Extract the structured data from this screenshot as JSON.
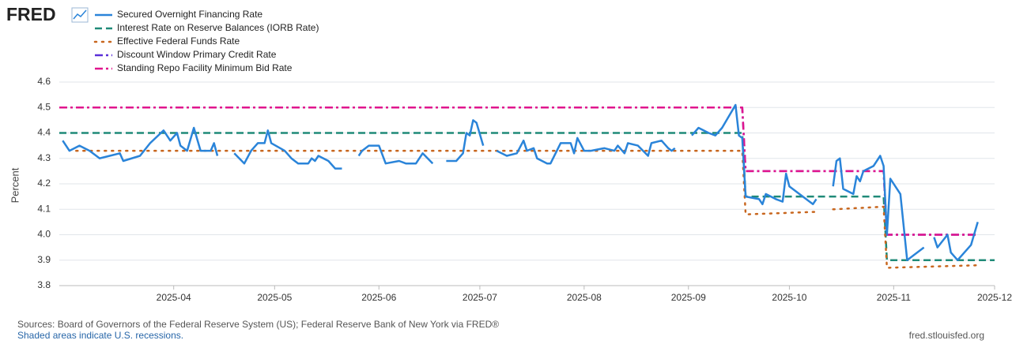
{
  "brand": "FRED",
  "footer": {
    "sources": "Sources: Board of Governors of the Federal Reserve System (US); Federal Reserve Bank of New York via FRED®",
    "note": "Shaded areas indicate U.S. recessions.",
    "site": "fred.stlouisfed.org"
  },
  "chart_data": {
    "type": "line",
    "y_label": "Percent",
    "xlim": [
      "2025-02-26",
      "2025-12-01"
    ],
    "xticks": [
      {
        "value": "2025-04-01",
        "label": "2025-04"
      },
      {
        "value": "2025-05-01",
        "label": "2025-05"
      },
      {
        "value": "2025-06-01",
        "label": "2025-06"
      },
      {
        "value": "2025-07-01",
        "label": "2025-07"
      },
      {
        "value": "2025-08-01",
        "label": "2025-08"
      },
      {
        "value": "2025-09-01",
        "label": "2025-09"
      },
      {
        "value": "2025-10-01",
        "label": "2025-10"
      },
      {
        "value": "2025-11-01",
        "label": "2025-11"
      },
      {
        "value": "2025-12-01",
        "label": "2025-12"
      }
    ],
    "ylim": [
      3.8,
      4.6
    ],
    "yticks": [
      3.8,
      3.9,
      {
        "value": 4,
        "label": "4.0"
      },
      4.1,
      4.2,
      4.3,
      4.4,
      4.5,
      4.6
    ],
    "grid": true,
    "series": [
      {
        "name": "Secured Overnight Financing Rate",
        "color": "#2a84d9",
        "x": [
          "2025-02-27",
          "2025-03-01",
          "2025-03-04",
          "2025-03-07",
          "2025-03-10",
          "2025-03-13",
          "2025-03-16",
          "2025-03-17",
          "2025-03-22",
          "2025-03-25",
          "2025-03-29",
          "2025-03-31",
          "2025-04-02",
          "2025-04-03",
          "2025-04-05",
          "2025-04-07",
          "2025-04-09",
          "2025-04-12",
          "2025-04-13",
          "2025-04-14",
          "2025-04-16",
          "2025-04-19",
          "2025-04-22",
          "2025-04-24",
          "2025-04-26",
          "2025-04-28",
          "2025-04-29",
          "2025-04-30",
          "2025-05-04",
          "2025-05-06",
          "2025-05-08",
          "2025-05-11",
          "2025-05-12",
          "2025-05-13",
          "2025-05-14",
          "2025-05-17",
          "2025-05-19",
          "2025-05-21",
          "2025-05-23",
          "2025-05-26",
          "2025-05-27",
          "2025-05-29",
          "2025-06-01",
          "2025-06-03",
          "2025-06-07",
          "2025-06-09",
          "2025-06-12",
          "2025-06-14",
          "2025-06-17",
          "2025-06-19",
          "2025-06-21",
          "2025-06-24",
          "2025-06-26",
          "2025-06-27",
          "2025-06-28",
          "2025-06-29",
          "2025-06-30",
          "2025-07-02",
          "2025-07-04",
          "2025-07-06",
          "2025-07-09",
          "2025-07-12",
          "2025-07-14",
          "2025-07-15",
          "2025-07-17",
          "2025-07-18",
          "2025-07-21",
          "2025-07-22",
          "2025-07-25",
          "2025-07-28",
          "2025-07-29",
          "2025-07-30",
          "2025-08-01",
          "2025-08-03",
          "2025-08-07",
          "2025-08-10",
          "2025-08-11",
          "2025-08-13",
          "2025-08-14",
          "2025-08-17",
          "2025-08-20",
          "2025-08-21",
          "2025-08-24",
          "2025-08-26",
          "2025-08-27",
          "2025-08-28",
          "2025-08-30",
          "2025-09-02",
          "2025-09-04",
          "2025-09-07",
          "2025-09-09",
          "2025-09-11",
          "2025-09-15",
          "2025-09-16",
          "2025-09-17",
          "2025-09-18",
          "2025-09-22",
          "2025-09-23",
          "2025-09-24",
          "2025-09-27",
          "2025-09-29",
          "2025-09-30",
          "2025-10-01",
          "2025-10-05",
          "2025-10-08",
          "2025-10-09",
          "2025-10-11",
          "2025-10-14",
          "2025-10-15",
          "2025-10-16",
          "2025-10-17",
          "2025-10-20",
          "2025-10-21",
          "2025-10-22",
          "2025-10-23",
          "2025-10-26",
          "2025-10-28",
          "2025-10-29",
          "2025-10-30",
          "2025-10-31",
          "2025-11-03",
          "2025-11-05",
          "2025-11-07",
          "2025-11-10",
          "2025-11-12",
          "2025-11-13",
          "2025-11-14",
          "2025-11-17",
          "2025-11-18",
          "2025-11-20",
          "2025-11-24",
          "2025-11-26"
        ],
        "values": [
          4.37,
          4.33,
          4.35,
          4.33,
          4.3,
          4.31,
          4.32,
          4.29,
          4.31,
          4.36,
          4.41,
          4.37,
          4.4,
          4.35,
          4.33,
          4.42,
          4.33,
          4.33,
          4.36,
          4.31,
          null,
          4.32,
          4.28,
          4.33,
          4.36,
          4.36,
          4.41,
          4.36,
          4.33,
          4.3,
          4.28,
          4.28,
          4.3,
          4.29,
          4.31,
          4.29,
          4.26,
          4.26,
          null,
          4.31,
          4.33,
          4.35,
          4.35,
          4.28,
          4.29,
          4.28,
          4.28,
          4.32,
          4.28,
          null,
          4.29,
          4.29,
          4.32,
          4.4,
          4.39,
          4.45,
          4.44,
          4.35,
          null,
          4.33,
          4.31,
          4.32,
          4.37,
          4.33,
          4.34,
          4.3,
          4.28,
          4.28,
          4.36,
          4.36,
          4.32,
          4.38,
          4.33,
          4.33,
          4.34,
          4.33,
          4.35,
          4.32,
          4.36,
          4.35,
          4.31,
          4.36,
          4.37,
          4.34,
          4.33,
          4.34,
          null,
          4.39,
          4.42,
          4.4,
          4.39,
          4.42,
          4.51,
          4.39,
          4.38,
          4.15,
          4.14,
          4.12,
          4.16,
          4.14,
          4.13,
          4.24,
          4.19,
          4.15,
          4.12,
          4.14,
          null,
          4.19,
          4.29,
          4.3,
          4.18,
          4.16,
          4.23,
          4.21,
          4.25,
          4.27,
          4.31,
          4.27,
          4.0,
          4.22,
          4.16,
          3.9,
          3.92,
          3.95,
          null,
          3.99,
          3.95,
          4.0,
          3.93,
          3.9,
          3.96,
          4.05
        ]
      },
      {
        "name": "Interest Rate on Reserve Balances (IORB Rate)",
        "color": "#1f8a78",
        "x": [
          "2025-02-26",
          "2025-09-17",
          "2025-09-18",
          "2025-10-29",
          "2025-10-30",
          "2025-12-01"
        ],
        "values": [
          4.4,
          4.4,
          4.15,
          4.15,
          3.9,
          3.9
        ]
      },
      {
        "name": "Effective Federal Funds Rate",
        "color": "#c8661e",
        "x": [
          "2025-03-03",
          "2025-09-17",
          "2025-09-18",
          "2025-10-09",
          "2025-10-11",
          "2025-10-14",
          "2025-10-29",
          "2025-10-30",
          "2025-11-26"
        ],
        "values": [
          4.33,
          4.33,
          4.08,
          4.09,
          null,
          4.1,
          4.11,
          3.87,
          3.88
        ]
      },
      {
        "name": "Discount Window Primary Credit Rate",
        "color": "#5a2fd8",
        "x": [
          "2025-02-26",
          "2025-09-17",
          "2025-09-18",
          "2025-10-29",
          "2025-10-30",
          "2025-11-26"
        ],
        "values": [
          4.5,
          4.5,
          4.25,
          4.25,
          4.0,
          4.0
        ]
      },
      {
        "name": "Standing Repo Facility Minimum Bid Rate",
        "color": "#e0158d",
        "x": [
          "2025-02-26",
          "2025-09-17",
          "2025-09-18",
          "2025-10-29",
          "2025-10-30",
          "2025-11-26"
        ],
        "values": [
          4.5,
          4.5,
          4.25,
          4.25,
          4.0,
          4.0
        ]
      }
    ]
  }
}
